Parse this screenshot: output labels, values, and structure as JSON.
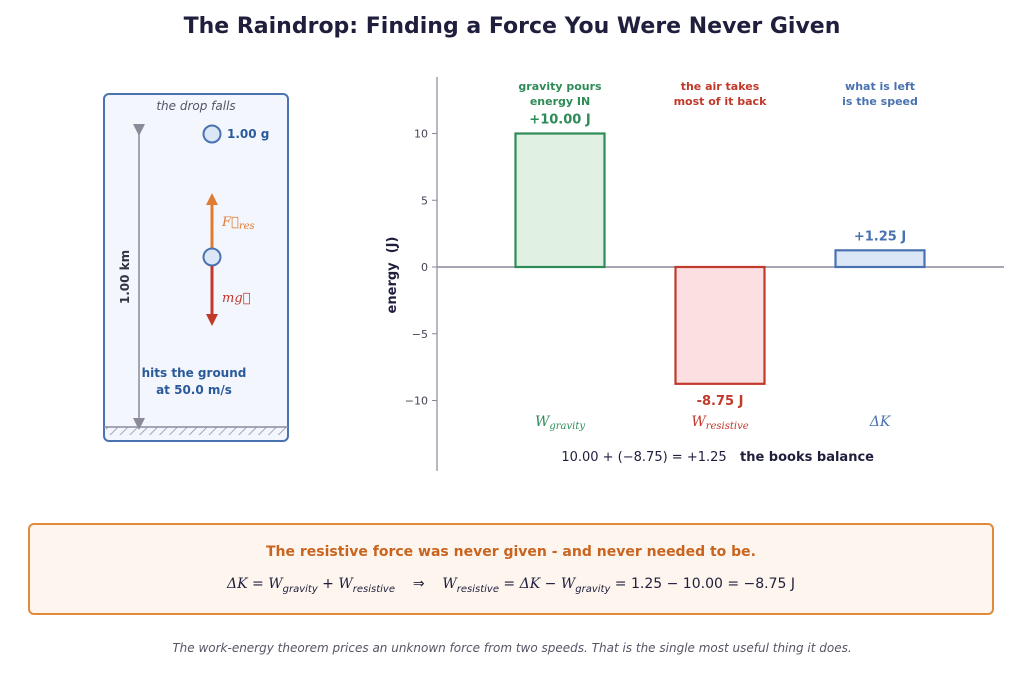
{
  "title": "The Raindrop: Finding a Force You Were Never Given",
  "diagram": {
    "caption": "the drop falls",
    "mass_label": "1.00 g",
    "height_label": "1.00 km",
    "force_res_label": "F⃗res",
    "weight_label": "mg⃗",
    "ground_line1": "hits the ground",
    "ground_line2": "at 50.0 m/s"
  },
  "chart_data": {
    "type": "bar",
    "ylabel": "energy  (J)",
    "ylim": [
      -15,
      14
    ],
    "yticks": [
      10,
      5,
      0,
      -5,
      -10
    ],
    "ytick_labels": [
      "10",
      "5",
      "0",
      "−5",
      "−10"
    ],
    "categories": [
      "W_gravity",
      "W_resistive",
      "ΔK"
    ],
    "values": [
      10.0,
      -8.75,
      1.25
    ],
    "value_labels": [
      "+10.00 J",
      "-8.75 J",
      "+1.25 J"
    ],
    "category_labels": [
      {
        "main": "W",
        "sub": "gravity"
      },
      {
        "main": "W",
        "sub": "resistive"
      },
      {
        "main": "ΔK",
        "sub": ""
      }
    ],
    "annotations_top": [
      [
        "gravity pours",
        "energy IN"
      ],
      [
        "the air takes",
        "most of it back"
      ],
      [
        "what is left",
        "is the speed"
      ]
    ],
    "balance_equation": "10.00 + (−8.75) = +1.25",
    "balance_note": "the books balance",
    "colors": {
      "gravity_stroke": "#2e8b57",
      "gravity_fill": "#e0f0e2",
      "resistive_stroke": "#c0392b",
      "resistive_fill": "#fbdfe1",
      "dk_stroke": "#4a72b0",
      "dk_fill": "#dbe7f7"
    }
  },
  "summary": {
    "headline": "The resistive force was never given - and never needed to be.",
    "eq_left_1": "ΔK",
    "eq_left_2": "W",
    "eq_left_2_sub": "gravity",
    "eq_left_3": "W",
    "eq_left_3_sub": "resistive",
    "arrow": "⇒",
    "eq_right_1": "W",
    "eq_right_1_sub": "resistive",
    "eq_right_2": "ΔK",
    "eq_right_3": "W",
    "eq_right_3_sub": "gravity",
    "eq_right_tail": "1.25 − 10.00 = −8.75 J"
  },
  "footer": "The work-energy theorem prices an unknown force from two speeds. That is the single most useful thing it does."
}
